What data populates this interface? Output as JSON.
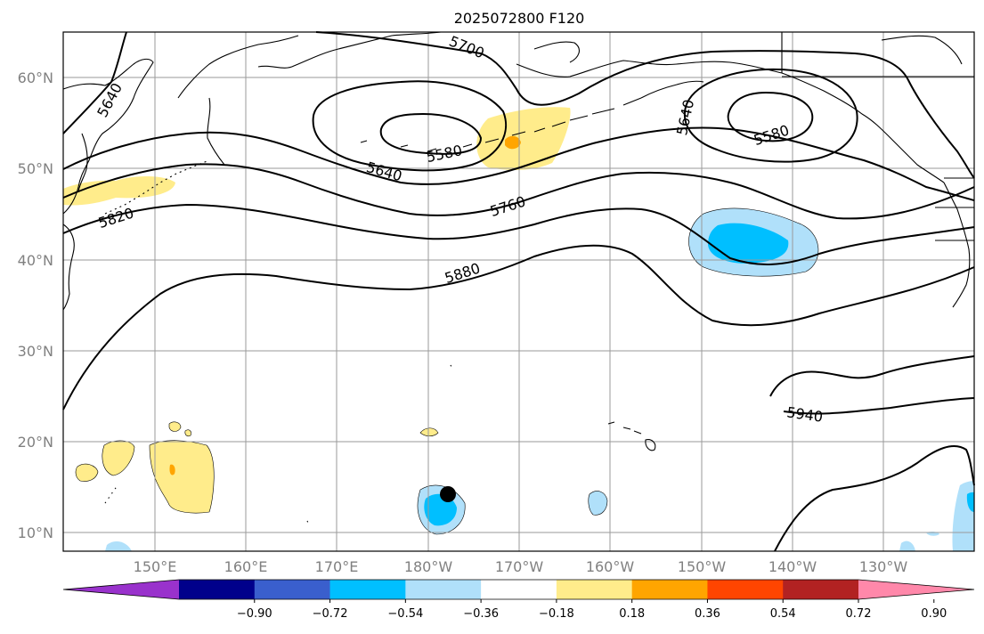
{
  "title": "2025072800 F120",
  "map": {
    "lat_labels": [
      "60°N",
      "50°N",
      "40°N",
      "30°N",
      "20°N",
      "10°N"
    ],
    "lon_labels": [
      "150°E",
      "160°E",
      "170°E",
      "180°W",
      "170°W",
      "160°W",
      "150°W",
      "140°W",
      "130°W"
    ],
    "contour_labels": [
      "5700",
      "5640",
      "5580",
      "5640",
      "5640",
      "5580",
      "5820",
      "5760",
      "5880",
      "5940"
    ],
    "marker": {
      "name": "black dot",
      "lon": -176.8,
      "lat": 14.2
    }
  },
  "colorbar": {
    "tick_labels": [
      "−0.90",
      "−0.72",
      "−0.54",
      "−0.36",
      "−0.18",
      "0.18",
      "0.36",
      "0.54",
      "0.72",
      "0.90"
    ],
    "colors": [
      "#9932cc",
      "#00008b",
      "#3a5fcd",
      "#00bfff",
      "#b0e0fa",
      "#ffffff",
      "#ffec8b",
      "#ffa500",
      "#ff4500",
      "#b22222",
      "#ff88aa"
    ]
  }
}
